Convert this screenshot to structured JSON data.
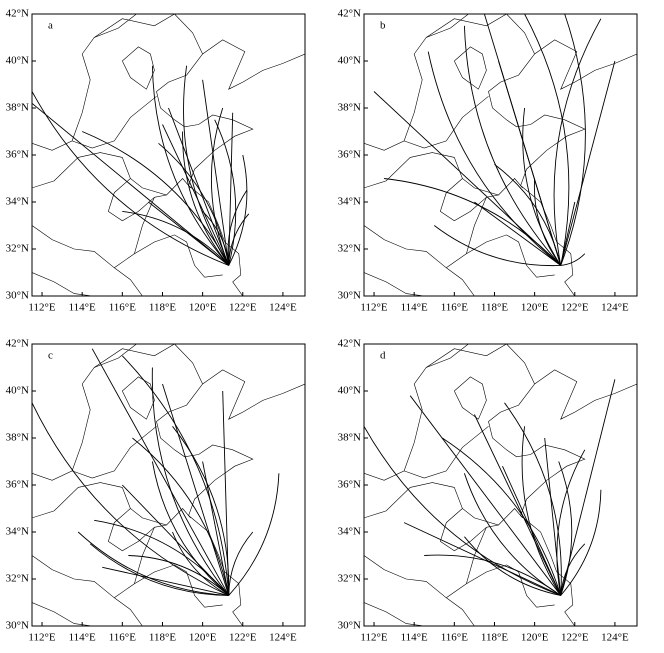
{
  "panels": [
    {
      "label": "a"
    },
    {
      "label": "b"
    },
    {
      "label": "c"
    },
    {
      "label": "d"
    }
  ],
  "lat_labels": [
    "42°N",
    "40°N",
    "38°N",
    "36°N",
    "34°N",
    "32°N",
    "30°N"
  ],
  "lon_labels": [
    "112°E",
    "114°E",
    "116°E",
    "118°E",
    "120°E",
    "122°E",
    "124°E"
  ]
}
